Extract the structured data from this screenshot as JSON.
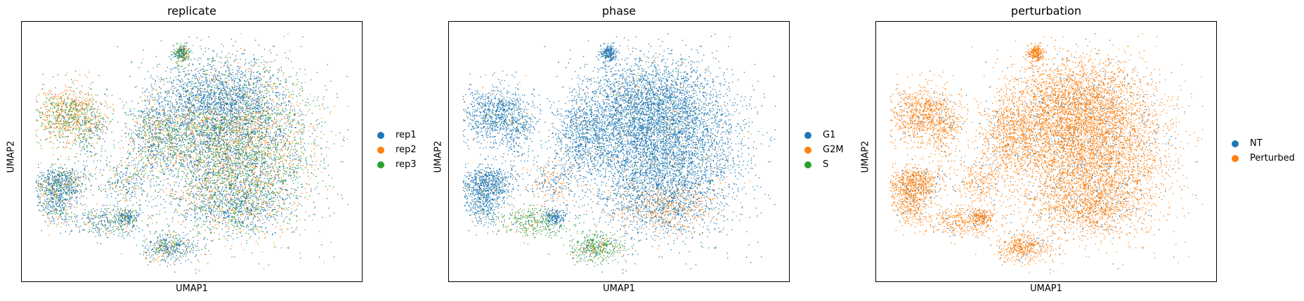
{
  "chart_data": [
    {
      "type": "scatter",
      "title": "replicate",
      "xlabel": "UMAP1",
      "ylabel": "UMAP2",
      "grid": false,
      "legend_position": "right",
      "series": [
        {
          "name": "rep1",
          "color": "#1f77b4"
        },
        {
          "name": "rep2",
          "color": "#ff7f0e"
        },
        {
          "name": "rep3",
          "color": "#2ca02c"
        }
      ]
    },
    {
      "type": "scatter",
      "title": "phase",
      "xlabel": "UMAP1",
      "ylabel": "UMAP2",
      "grid": false,
      "legend_position": "right",
      "series": [
        {
          "name": "G1",
          "color": "#1f77b4"
        },
        {
          "name": "G2M",
          "color": "#ff7f0e"
        },
        {
          "name": "S",
          "color": "#2ca02c"
        }
      ]
    },
    {
      "type": "scatter",
      "title": "perturbation",
      "xlabel": "UMAP1",
      "ylabel": "UMAP2",
      "grid": false,
      "legend_position": "right",
      "series": [
        {
          "name": "NT",
          "color": "#1f77b4"
        },
        {
          "name": "Perturbed",
          "color": "#ff7f0e"
        }
      ]
    }
  ]
}
